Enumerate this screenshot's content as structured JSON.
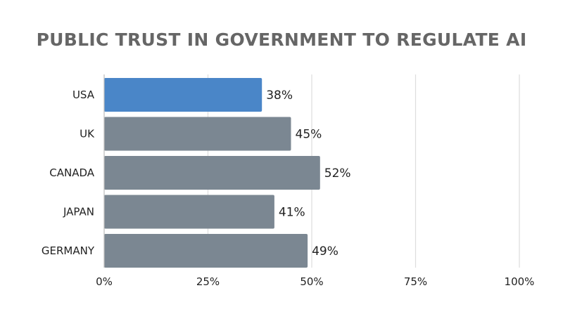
{
  "chart_data": {
    "type": "bar",
    "orientation": "horizontal",
    "title": "PUBLIC TRUST IN GOVERNMENT TO REGULATE AI",
    "categories": [
      "USA",
      "UK",
      "CANADA",
      "JAPAN",
      "GERMANY"
    ],
    "values": [
      38,
      45,
      52,
      41,
      49
    ],
    "value_labels": [
      "38%",
      "45%",
      "52%",
      "41%",
      "49%"
    ],
    "highlight_category": "USA",
    "xlim": [
      0,
      100
    ],
    "xticks": [
      0,
      25,
      50,
      75,
      100
    ],
    "xtick_labels": [
      "0%",
      "25%",
      "50%",
      "75%",
      "100%"
    ],
    "xlabel": "",
    "ylabel": "",
    "grid": true,
    "legend": "none",
    "colors": {
      "bar": "#7b8792",
      "highlight": "#4a86c8",
      "title": "#666666",
      "text": "#222222",
      "grid": "#dddddd"
    }
  }
}
